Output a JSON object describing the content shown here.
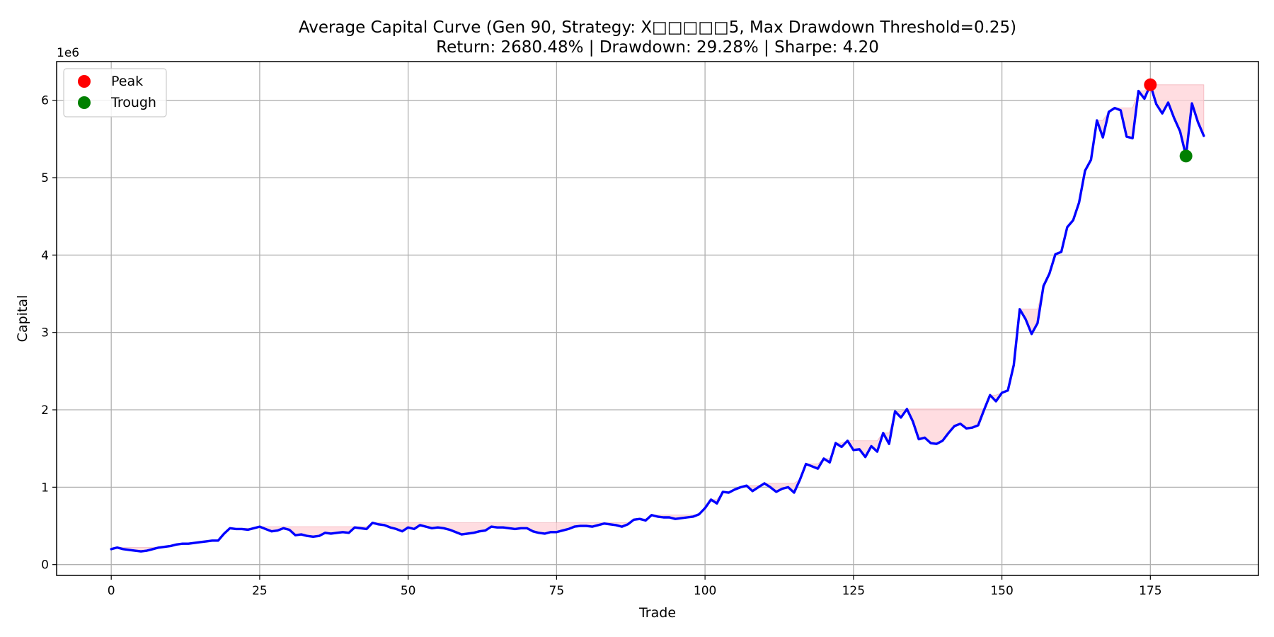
{
  "chart_data": {
    "type": "line",
    "title": "Average Capital Curve (Gen 90, Strategy: X□□□□□5, Max Drawdown Threshold=0.25)",
    "subtitle": "Return: 2680.48% | Drawdown: 29.28% | Sharpe: 4.20",
    "xlabel": "Trade",
    "ylabel": "Capital",
    "y_offset_label": "1e6",
    "xlim": [
      -9.2,
      193.2
    ],
    "ylim": [
      -0.14,
      6.5
    ],
    "x_ticks": [
      0,
      25,
      50,
      75,
      100,
      125,
      150,
      175
    ],
    "y_ticks": [
      0,
      1,
      2,
      3,
      4,
      5,
      6
    ],
    "grid": true,
    "legend_position": "top-left",
    "colors": {
      "line": "#0000ff",
      "peak": "#ff0000",
      "trough": "#008000",
      "drawdown_fill": "#ffd2d7"
    },
    "series": [
      {
        "values": [
          0.2,
          0.22,
          0.2,
          0.19,
          0.18,
          0.17,
          0.18,
          0.2,
          0.22,
          0.23,
          0.24,
          0.26,
          0.27,
          0.27,
          0.28,
          0.29,
          0.3,
          0.31,
          0.31,
          0.4,
          0.47,
          0.46,
          0.46,
          0.45,
          0.47,
          0.49,
          0.46,
          0.43,
          0.44,
          0.47,
          0.45,
          0.38,
          0.39,
          0.37,
          0.36,
          0.37,
          0.41,
          0.4,
          0.41,
          0.42,
          0.41,
          0.48,
          0.47,
          0.46,
          0.54,
          0.52,
          0.51,
          0.48,
          0.46,
          0.43,
          0.48,
          0.46,
          0.51,
          0.49,
          0.47,
          0.48,
          0.47,
          0.45,
          0.42,
          0.39,
          0.4,
          0.41,
          0.43,
          0.44,
          0.49,
          0.48,
          0.48,
          0.47,
          0.46,
          0.47,
          0.47,
          0.43,
          0.41,
          0.4,
          0.42,
          0.42,
          0.44,
          0.46,
          0.49,
          0.5,
          0.5,
          0.49,
          0.51,
          0.53,
          0.52,
          0.51,
          0.49,
          0.52,
          0.58,
          0.59,
          0.57,
          0.64,
          0.62,
          0.61,
          0.61,
          0.59,
          0.6,
          0.61,
          0.62,
          0.65,
          0.73,
          0.84,
          0.79,
          0.94,
          0.93,
          0.97,
          1.0,
          1.02,
          0.95,
          1.0,
          1.05,
          1.0,
          0.94,
          0.98,
          1.0,
          0.93,
          1.1,
          1.3,
          1.27,
          1.24,
          1.37,
          1.32,
          1.57,
          1.52,
          1.6,
          1.48,
          1.49,
          1.39,
          1.53,
          1.46,
          1.7,
          1.56,
          1.98,
          1.9,
          2.01,
          1.85,
          1.62,
          1.64,
          1.57,
          1.56,
          1.6,
          1.7,
          1.79,
          1.82,
          1.76,
          1.77,
          1.8,
          2.0,
          2.19,
          2.11,
          2.22,
          2.25,
          2.58,
          3.3,
          3.17,
          2.98,
          3.12,
          3.6,
          3.76,
          4.01,
          4.04,
          4.36,
          4.45,
          4.68,
          5.09,
          5.23,
          5.74,
          5.52,
          5.85,
          5.9,
          5.87,
          5.53,
          5.51,
          6.12,
          6.02,
          6.2,
          5.95,
          5.83,
          5.97,
          5.77,
          5.6,
          5.28,
          5.96,
          5.72,
          5.54
        ]
      }
    ],
    "markers": [
      {
        "name": "Peak",
        "x": 175,
        "y": 6.2,
        "color": "#ff0000"
      },
      {
        "name": "Trough",
        "x": 181,
        "y": 5.28,
        "color": "#008000"
      }
    ]
  }
}
